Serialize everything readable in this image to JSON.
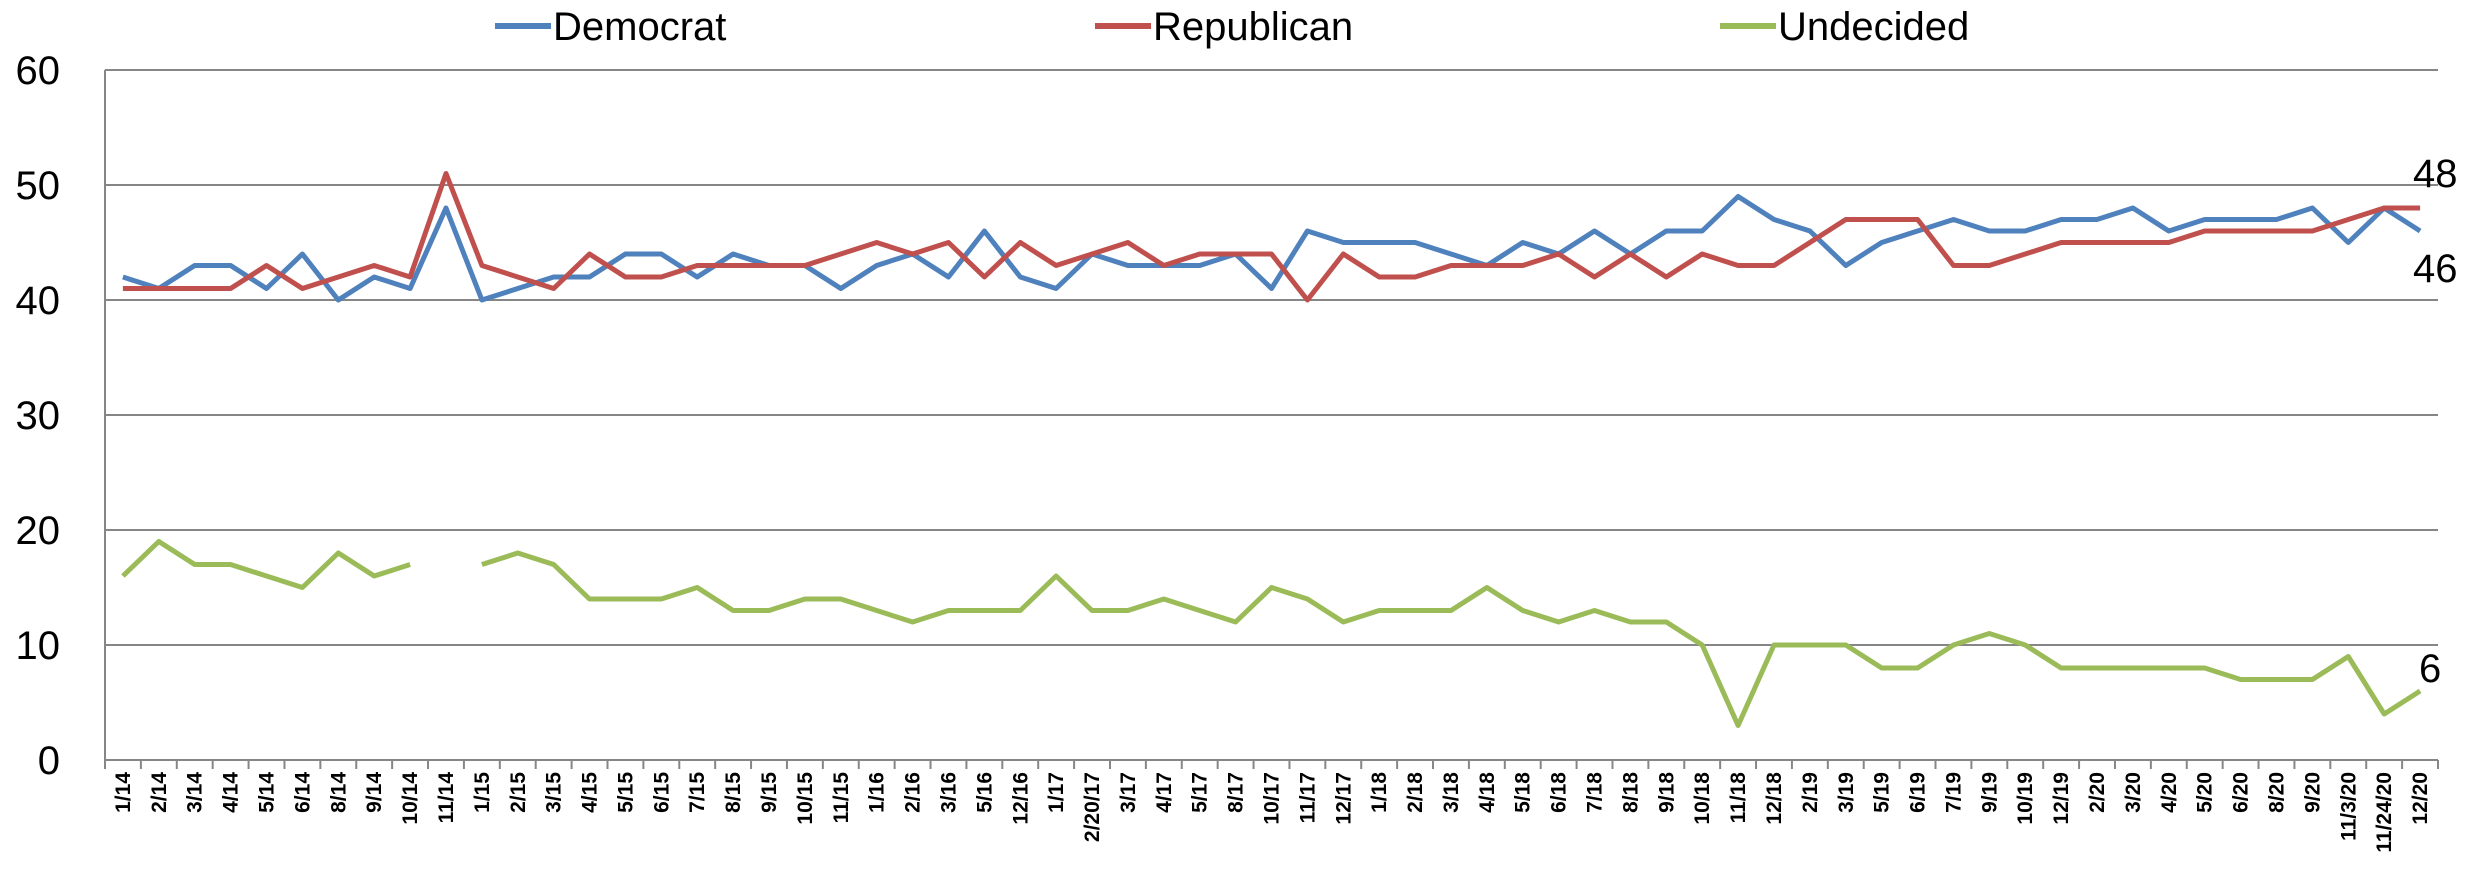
{
  "chart_data": {
    "type": "line",
    "categories": [
      "1/14",
      "2/14",
      "3/14",
      "4/14",
      "5/14",
      "6/14",
      "8/14",
      "9/14",
      "10/14",
      "11/14",
      "1/15",
      "2/15",
      "3/15",
      "4/15",
      "5/15",
      "6/15",
      "7/15",
      "8/15",
      "9/15",
      "10/15",
      "11/15",
      "1/16",
      "2/16",
      "3/16",
      "5/16",
      "12/16",
      "1/17",
      "2/20/17",
      "3/17",
      "4/17",
      "5/17",
      "8/17",
      "10/17",
      "11/17",
      "12/17",
      "1/18",
      "2/18",
      "3/18",
      "4/18",
      "5/18",
      "6/18",
      "7/18",
      "8/18",
      "9/18",
      "10/18",
      "11/18",
      "12/18",
      "2/19",
      "3/19",
      "5/19",
      "6/19",
      "7/19",
      "9/19",
      "10/19",
      "12/19",
      "2/20",
      "3/20",
      "4/20",
      "5/20",
      "6/20",
      "8/20",
      "9/20",
      "11/3/20",
      "11/24/20",
      "12/20"
    ],
    "ylim": [
      0,
      60
    ],
    "yticks": [
      0,
      10,
      20,
      30,
      40,
      50,
      60
    ],
    "grid": true,
    "legend_position": "top",
    "series": [
      {
        "name": "Democrat",
        "color": "#4F81BD",
        "values": [
          42,
          41,
          43,
          43,
          41,
          44,
          40,
          42,
          41,
          48,
          40,
          41,
          42,
          42,
          44,
          44,
          42,
          44,
          43,
          43,
          41,
          43,
          44,
          42,
          46,
          42,
          41,
          44,
          43,
          43,
          43,
          44,
          41,
          46,
          45,
          45,
          45,
          44,
          43,
          45,
          44,
          46,
          44,
          46,
          46,
          49,
          47,
          46,
          43,
          45,
          46,
          47,
          46,
          46,
          47,
          47,
          48,
          46,
          47,
          47,
          47,
          48,
          45,
          48,
          46
        ]
      },
      {
        "name": "Republican",
        "color": "#C0504D",
        "values": [
          41,
          41,
          41,
          41,
          43,
          41,
          42,
          43,
          42,
          51,
          43,
          42,
          41,
          44,
          42,
          42,
          43,
          43,
          43,
          43,
          44,
          45,
          44,
          45,
          42,
          45,
          43,
          44,
          45,
          43,
          44,
          44,
          44,
          40,
          44,
          42,
          42,
          43,
          43,
          43,
          44,
          42,
          44,
          42,
          44,
          43,
          43,
          45,
          47,
          47,
          47,
          43,
          43,
          44,
          45,
          45,
          45,
          45,
          46,
          46,
          46,
          46,
          47,
          48,
          48
        ]
      },
      {
        "name": "Undecided",
        "color": "#9BBB59",
        "values": [
          16,
          19,
          17,
          17,
          16,
          15,
          18,
          16,
          17,
          null,
          17,
          18,
          17,
          14,
          14,
          14,
          15,
          13,
          13,
          14,
          14,
          13,
          12,
          13,
          13,
          13,
          16,
          13,
          13,
          14,
          13,
          12,
          15,
          14,
          12,
          13,
          13,
          13,
          15,
          13,
          12,
          13,
          12,
          12,
          10,
          3,
          10,
          10,
          10,
          8,
          8,
          10,
          11,
          10,
          8,
          8,
          8,
          8,
          8,
          7,
          7,
          7,
          9,
          4,
          6
        ]
      }
    ],
    "end_labels": [
      "48",
      "46",
      "6"
    ]
  }
}
